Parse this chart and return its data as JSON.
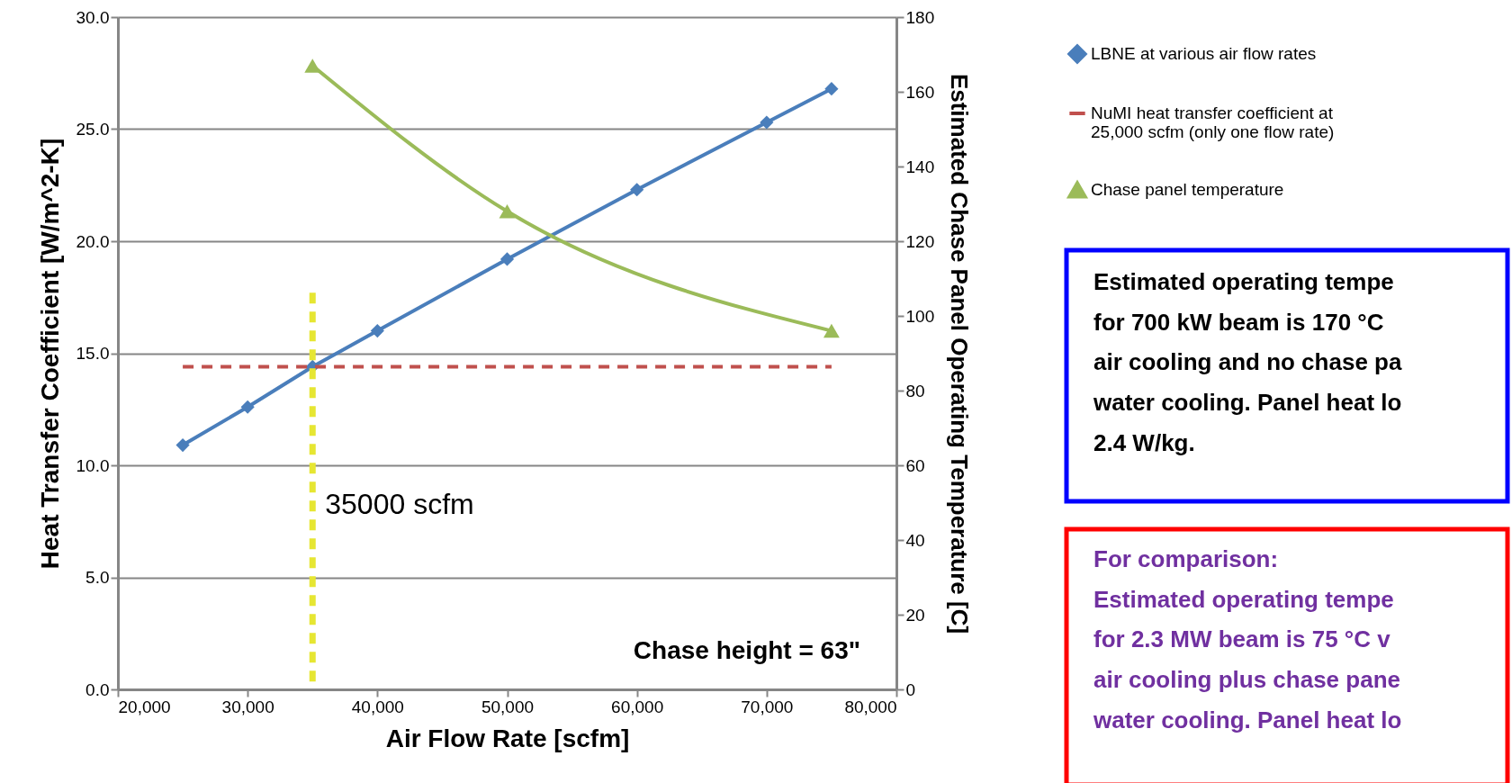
{
  "chart_data": {
    "type": "line",
    "xlabel": "Air Flow Rate [scfm]",
    "ylabel": "Heat Transfer Coefficient [W/m^2-K]",
    "y2label": "Estimated Chase Panel Operating Temperature [C]",
    "xlim": [
      20000,
      80000
    ],
    "xticks": [
      {
        "value": 20000,
        "label": "20,000"
      },
      {
        "value": 30000,
        "label": "30,000"
      },
      {
        "value": 40000,
        "label": "40,000"
      },
      {
        "value": 50000,
        "label": "50,000"
      },
      {
        "value": 60000,
        "label": "60,000"
      },
      {
        "value": 70000,
        "label": "70,000"
      },
      {
        "value": 80000,
        "label": "80,000"
      }
    ],
    "ylim": [
      0,
      30
    ],
    "yticks": [
      {
        "value": 0,
        "label": "0.0"
      },
      {
        "value": 5,
        "label": "5.0"
      },
      {
        "value": 10,
        "label": "10.0"
      },
      {
        "value": 15,
        "label": "15.0"
      },
      {
        "value": 20,
        "label": "20.0"
      },
      {
        "value": 25,
        "label": "25.0"
      },
      {
        "value": 30,
        "label": "30.0"
      }
    ],
    "y2lim": [
      0,
      180
    ],
    "y2ticks": [
      0,
      20,
      40,
      60,
      80,
      100,
      120,
      140,
      160,
      180
    ],
    "grid": "y",
    "legend": "right",
    "series": [
      {
        "name": "LBNE at various air flow rates",
        "color": "#4a7ebb",
        "marker": "diamond",
        "x": [
          25000,
          30000,
          35000,
          40000,
          50000,
          60000,
          70000,
          75000
        ],
        "values": [
          10.9,
          12.6,
          14.4,
          16.0,
          19.2,
          22.3,
          25.3,
          26.8
        ]
      },
      {
        "name": "NuMI heat transfer coefficient at 25,000 scfm (only one flow rate)",
        "color": "#c0504d",
        "line_style": "dashed",
        "marker": "none",
        "x": [
          25000,
          75000
        ],
        "values": [
          14.4,
          14.4
        ]
      },
      {
        "name": "Chase panel temperature",
        "color": "#9bbb59",
        "marker": "triangle",
        "axis": "y2",
        "x": [
          35000,
          50000,
          75000
        ],
        "values": [
          167,
          128,
          96
        ]
      }
    ],
    "ref_lines": [
      {
        "axis": "x",
        "value": 35000,
        "label": "35000 scfm",
        "color": "#e6e632",
        "line_style": "dashed"
      }
    ],
    "annotations": [
      "Chase height = 63\"",
      "Estimated operating tempe\nfor 700 kW beam is 170 °C\nair cooling and no chase pa\nwater cooling. Panel heat lo\n2.4 W/kg.",
      "For comparison:\nEstimated operating tempe\nfor 2.3 MW beam is 75 °C v\nair cooling plus chase pane\nwater cooling. Panel heat lo"
    ]
  }
}
